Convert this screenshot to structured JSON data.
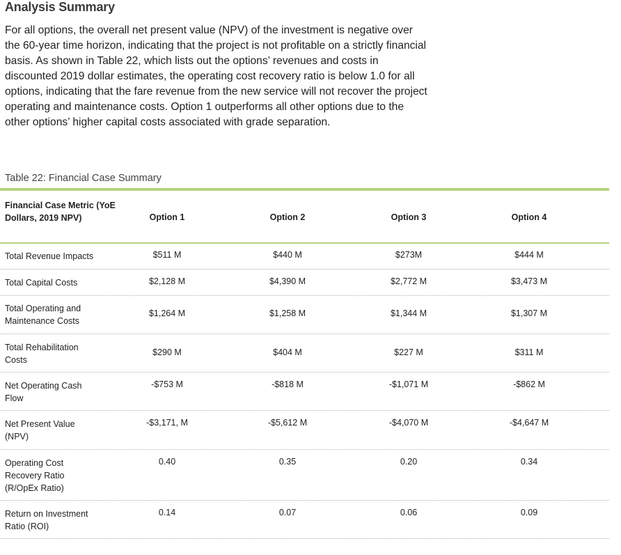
{
  "section": {
    "heading": "Analysis Summary",
    "paragraph": "For all options, the overall net present value (NPV) of the investment is negative over the 60-year time horizon, indicating that the project is not profitable on a strictly financial basis. As shown in Table 22, which lists out the options’ revenues and costs in discounted 2019 dollar estimates, the operating cost recovery ratio is below 1.0 for all options, indicating that the fare revenue from the new service will not recover the project operating and maintenance costs. Option 1 outperforms all other options due to the other options’ higher capital costs associated with grade separation."
  },
  "table": {
    "caption": "Table 22: Financial Case Summary",
    "metric_header": "Financial Case Metric (YoE Dollars, 2019 NPV)",
    "options": [
      "Option 1",
      "Option 2",
      "Option 3",
      "Option 4"
    ],
    "rows": [
      {
        "label": "Total Revenue Impacts",
        "values": [
          "$511 M",
          "$440 M",
          "$273M",
          "$444 M"
        ]
      },
      {
        "label": "Total Capital Costs",
        "values": [
          "$2,128 M",
          "$4,390 M",
          "$2,772 M",
          "$3,473 M"
        ]
      },
      {
        "label": "Total Operating and Maintenance Costs",
        "values": [
          "$1,264 M",
          "$1,258 M",
          "$1,344 M",
          "$1,307 M"
        ]
      },
      {
        "label": "Total Rehabilitation Costs",
        "values": [
          "$290 M",
          "$404 M",
          "$227 M",
          "$311 M"
        ]
      },
      {
        "label": "Net Operating Cash Flow",
        "values": [
          "-$753 M",
          "-$818 M",
          "-$1,071 M",
          "-$862 M"
        ]
      },
      {
        "label": "Net Present Value (NPV)",
        "values": [
          "-$3,171, M",
          "-$5,612 M",
          "-$4,070 M",
          "-$4,647 M"
        ]
      },
      {
        "label": "Operating Cost Recovery Ratio (R/OpEx Ratio)",
        "values": [
          "0.40",
          "0.35",
          "0.20",
          "0.34"
        ]
      },
      {
        "label": "Return on Investment Ratio (ROI)",
        "values": [
          "0.14",
          "0.07",
          "0.06",
          "0.09"
        ]
      }
    ]
  },
  "colors": {
    "accent_rule": "#b5d27d",
    "row_divider": "#b0b0b0"
  }
}
